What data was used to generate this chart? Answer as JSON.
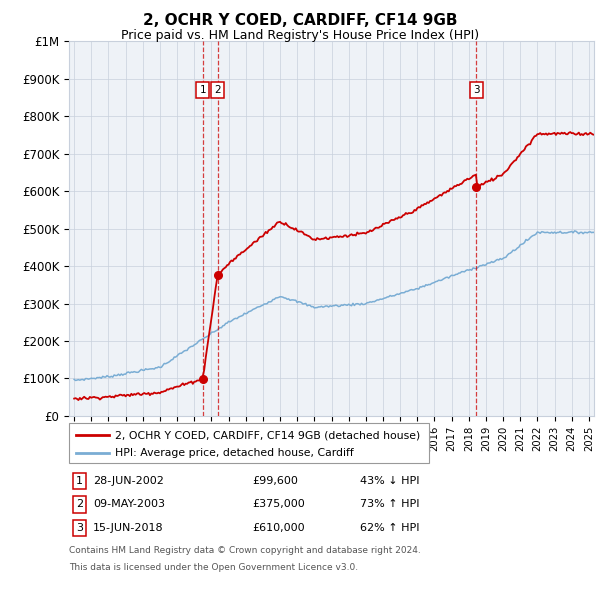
{
  "title": "2, OCHR Y COED, CARDIFF, CF14 9GB",
  "subtitle": "Price paid vs. HM Land Registry's House Price Index (HPI)",
  "legend_line1": "2, OCHR Y COED, CARDIFF, CF14 9GB (detached house)",
  "legend_line2": "HPI: Average price, detached house, Cardiff",
  "footer_line1": "Contains HM Land Registry data © Crown copyright and database right 2024.",
  "footer_line2": "This data is licensed under the Open Government Licence v3.0.",
  "sales": [
    {
      "num": "1",
      "date": "28-JUN-2002",
      "price": "£99,600",
      "pct": "43% ↓ HPI",
      "year": 2002.49
    },
    {
      "num": "2",
      "date": "09-MAY-2003",
      "price": "£375,000",
      "pct": "73% ↑ HPI",
      "year": 2003.36
    },
    {
      "num": "3",
      "date": "15-JUN-2018",
      "price": "£610,000",
      "pct": "62% ↑ HPI",
      "year": 2018.45
    }
  ],
  "sale_values": [
    99600,
    375000,
    610000
  ],
  "ylim": [
    0,
    1000000
  ],
  "yticks": [
    0,
    100000,
    200000,
    300000,
    400000,
    500000,
    600000,
    700000,
    800000,
    900000,
    1000000
  ],
  "ytick_labels": [
    "£0",
    "£100K",
    "£200K",
    "£300K",
    "£400K",
    "£500K",
    "£600K",
    "£700K",
    "£800K",
    "£900K",
    "£1M"
  ],
  "xlim_start": 1994.7,
  "xlim_end": 2025.3,
  "xticks": [
    1995,
    1996,
    1997,
    1998,
    1999,
    2000,
    2001,
    2002,
    2003,
    2004,
    2005,
    2006,
    2007,
    2008,
    2009,
    2010,
    2011,
    2012,
    2013,
    2014,
    2015,
    2016,
    2017,
    2018,
    2019,
    2020,
    2021,
    2022,
    2023,
    2024,
    2025
  ],
  "red_color": "#cc0000",
  "blue_color": "#7aadd4",
  "bg_color": "#eef2f7",
  "grid_color": "#c8d0dc"
}
